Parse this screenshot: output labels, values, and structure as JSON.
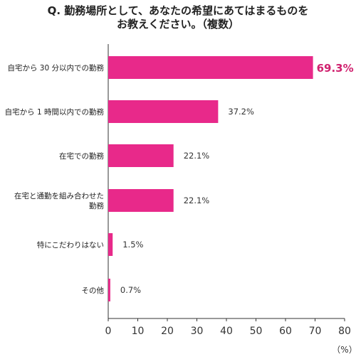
{
  "chart_data": {
    "type": "bar",
    "orientation": "horizontal",
    "title_lines": [
      "Q. 勤務場所として、あなたの希望にあてはまるものを",
      "お教えください。（複数）"
    ],
    "categories": [
      [
        "自宅から 30 分以内での勤務"
      ],
      [
        "自宅から 1 時間以内での勤務"
      ],
      [
        "在宅での勤務"
      ],
      [
        "在宅と通勤を組み合わせた",
        "勤務"
      ],
      [
        "特にこだわりはない"
      ],
      [
        "その他"
      ]
    ],
    "values": [
      69.3,
      37.2,
      22.1,
      22.1,
      1.5,
      0.7
    ],
    "value_labels": [
      "69.3%",
      "37.2%",
      "22.1%",
      "22.1%",
      "1.5%",
      "0.7%"
    ],
    "highlight_index": 0,
    "x_ticks": [
      "0",
      "10",
      "20",
      "30",
      "40",
      "50",
      "60",
      "70",
      "80"
    ],
    "xlim": [
      0,
      80
    ],
    "unit_label": "（%）",
    "colors": {
      "bar": "#e8298a",
      "highlight_text": "#d0226f",
      "axis": "#333333",
      "grid": "#cccccc"
    }
  }
}
